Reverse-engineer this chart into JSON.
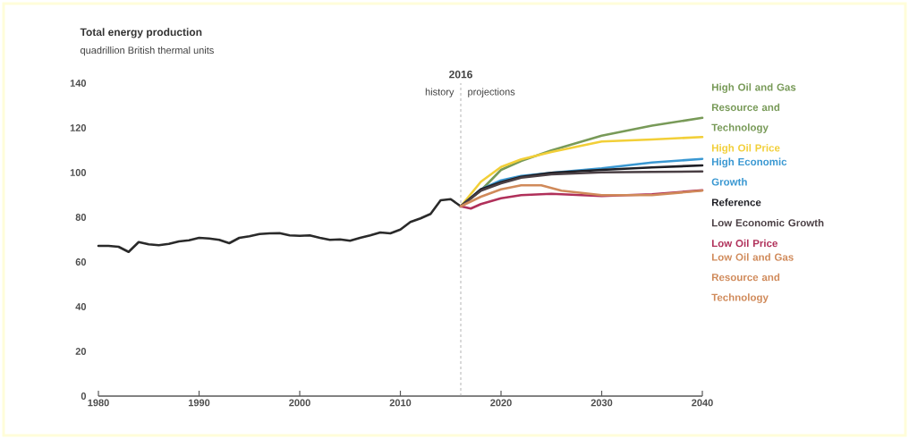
{
  "chart_data": {
    "type": "line",
    "title": "Total energy production",
    "subtitle": "quadrillion British thermal units",
    "xlim": [
      1980,
      2040
    ],
    "ylim": [
      0,
      140
    ],
    "xticks": [
      1980,
      1990,
      2000,
      2010,
      2020,
      2030,
      2040
    ],
    "yticks": [
      0,
      20,
      40,
      60,
      80,
      100,
      120,
      140
    ],
    "grid": false,
    "legend": "right",
    "marker": "none",
    "line_style": "solid",
    "ref_lines": [
      {
        "axis": "x",
        "value": 2016,
        "label": "2016",
        "color": "#a0a0a0",
        "line_style": "dashed"
      }
    ],
    "annotations": [
      "history",
      "projections"
    ],
    "series": [
      {
        "color": "#2a2a2a",
        "x": [
          1980,
          1981,
          1982,
          1983,
          1984,
          1985,
          1986,
          1987,
          1988,
          1989,
          1990,
          1991,
          1992,
          1993,
          1994,
          1995,
          1996,
          1997,
          1998,
          1999,
          2000,
          2001,
          2002,
          2003,
          2004,
          2005,
          2006,
          2007,
          2008,
          2009,
          2010,
          2011,
          2012,
          2013,
          2014,
          2015,
          2016
        ],
        "values": [
          67.2,
          67.2,
          66.8,
          64.5,
          68.9,
          67.9,
          67.5,
          68.1,
          69.2,
          69.7,
          70.8,
          70.5,
          69.9,
          68.4,
          70.8,
          71.5,
          72.5,
          72.8,
          72.9,
          71.9,
          71.7,
          71.9,
          70.8,
          69.9,
          70.1,
          69.5,
          70.8,
          71.9,
          73.2,
          72.8,
          74.5,
          77.9,
          79.5,
          81.5,
          87.6,
          88.1,
          84.9
        ]
      },
      {
        "name": "High Oil and Gas Resource and Technology",
        "color": "#789a58",
        "x": [
          2016,
          2018,
          2020,
          2022,
          2025,
          2030,
          2035,
          2040
        ],
        "values": [
          84.9,
          92.0,
          101.2,
          105.2,
          109.9,
          116.5,
          121.0,
          124.5
        ]
      },
      {
        "name": "High Oil Price",
        "color": "#f2cf38",
        "x": [
          2016,
          2018,
          2020,
          2022,
          2025,
          2030,
          2035,
          2040
        ],
        "values": [
          84.9,
          95.9,
          102.5,
          105.9,
          109.2,
          113.9,
          114.8,
          115.9
        ]
      },
      {
        "name": "High Economic Growth",
        "color": "#3a98d2",
        "x": [
          2016,
          2018,
          2020,
          2022,
          2025,
          2030,
          2035,
          2040
        ],
        "values": [
          84.9,
          92.5,
          96.5,
          98.5,
          99.9,
          101.9,
          104.5,
          106.1
        ]
      },
      {
        "name": "Reference",
        "color": "#1e1e24",
        "x": [
          2016,
          2018,
          2020,
          2022,
          2025,
          2030,
          2035,
          2040
        ],
        "values": [
          84.9,
          92.5,
          95.7,
          98.1,
          99.9,
          101.2,
          102.3,
          103.2
        ]
      },
      {
        "name": "Low Economic Growth",
        "color": "#4a3f44",
        "x": [
          2016,
          2018,
          2020,
          2022,
          2025,
          2030,
          2035,
          2040
        ],
        "values": [
          84.9,
          91.9,
          95.2,
          97.7,
          99.2,
          100.1,
          100.3,
          100.5
        ]
      },
      {
        "name": "Low Oil Price",
        "color": "#b0305a",
        "x": [
          2016,
          2017,
          2018,
          2020,
          2022,
          2025,
          2030,
          2035,
          2040
        ],
        "values": [
          84.9,
          83.9,
          85.9,
          88.5,
          89.9,
          90.5,
          89.5,
          90.3,
          92.1
        ]
      },
      {
        "name": "Low Oil and Gas Resource and Technology",
        "color": "#d08a5a",
        "x": [
          2016,
          2018,
          2020,
          2022,
          2024,
          2026,
          2030,
          2035,
          2040
        ],
        "values": [
          84.9,
          89.2,
          92.5,
          94.3,
          94.3,
          91.9,
          89.9,
          89.9,
          91.9
        ]
      }
    ]
  }
}
